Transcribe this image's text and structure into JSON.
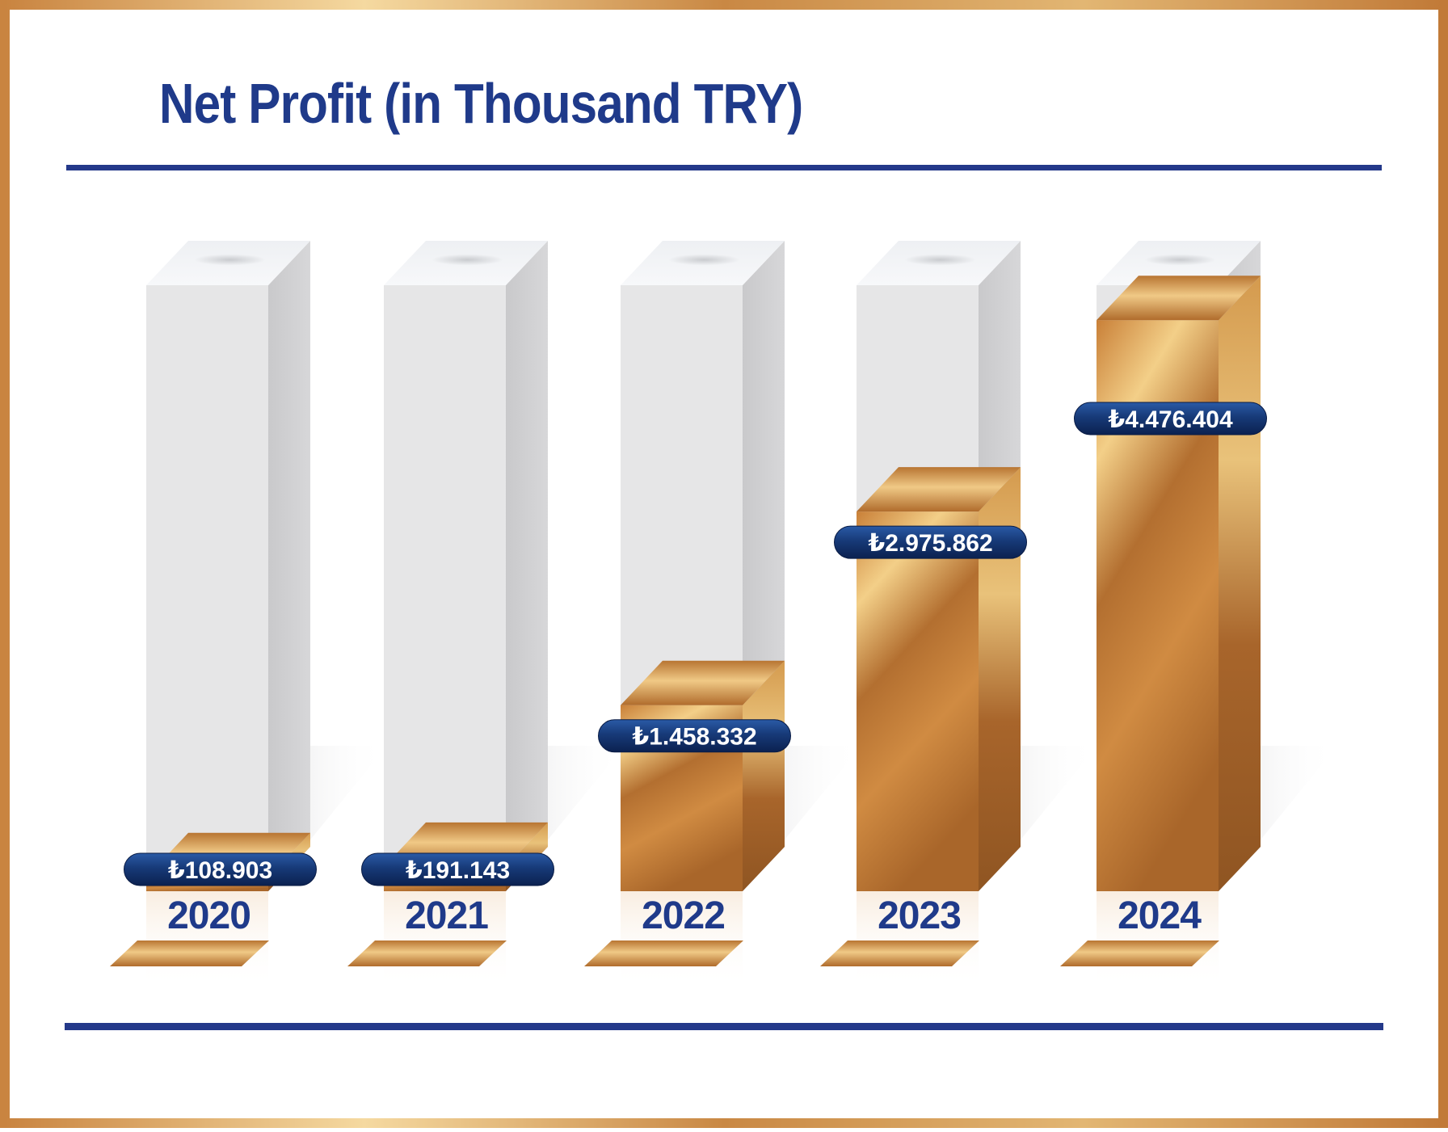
{
  "chart_data": {
    "type": "bar",
    "title": "Net Profit (in Thousand TRY)",
    "categories": [
      "2020",
      "2021",
      "2022",
      "2023",
      "2024"
    ],
    "values": [
      108903,
      191143,
      1458332,
      2975862,
      4476404
    ],
    "value_labels": [
      "₺108.903",
      "₺191.143",
      "₺1.458.332",
      "₺2.975.862",
      "₺4.476.404"
    ],
    "xlabel": "",
    "ylabel": "",
    "grid": false
  },
  "colors": {
    "title": "#1f3a8a",
    "rule": "#24398a",
    "frame_gold": "#c98a45",
    "bar_gold": "#c8843c",
    "label_bg": "#173a78"
  }
}
